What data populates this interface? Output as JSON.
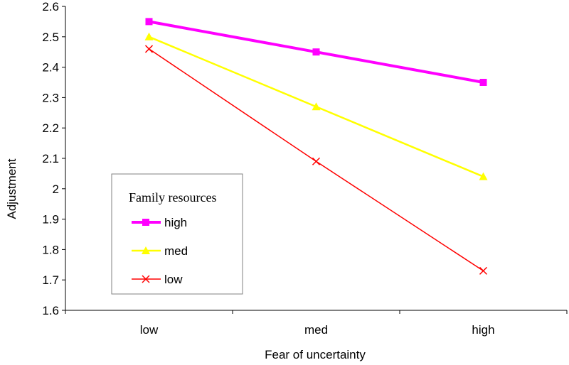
{
  "chart_data": {
    "type": "line",
    "title": "",
    "xlabel": "Fear of uncertainty",
    "ylabel": "Adjustment",
    "categories": [
      "low",
      "med",
      "high"
    ],
    "ylim": [
      1.6,
      2.6
    ],
    "yticks": [
      "1.6",
      "1.7",
      "1.8",
      "1.9",
      "2",
      "2.1",
      "2.2",
      "2.3",
      "2.4",
      "2.5",
      "2.6"
    ],
    "grid": false,
    "legend": {
      "title": "Family resources",
      "placement": "center-left"
    },
    "series": [
      {
        "name": "high",
        "values": [
          2.55,
          2.45,
          2.35
        ],
        "color": "#ff00ff",
        "marker": "square"
      },
      {
        "name": "med",
        "values": [
          2.5,
          2.27,
          2.04
        ],
        "color": "#ffff00",
        "marker": "triangle"
      },
      {
        "name": "low",
        "values": [
          2.46,
          2.09,
          1.73
        ],
        "color": "#ff0000",
        "marker": "x"
      }
    ]
  }
}
